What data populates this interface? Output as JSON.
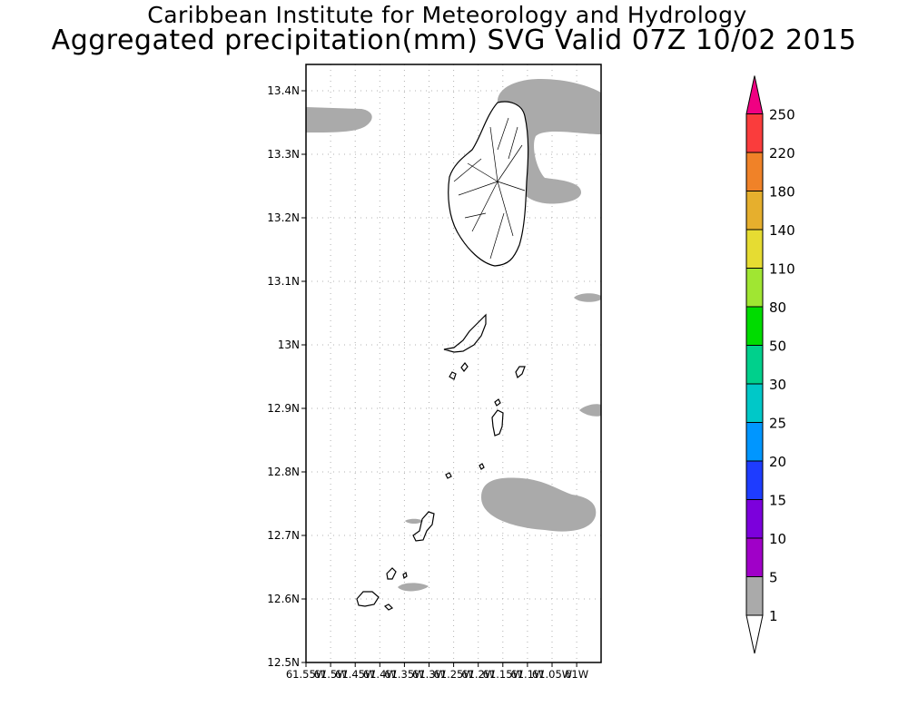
{
  "title": {
    "line1": "Caribbean Institute for Meteorology and Hydrology",
    "line2": "Aggregated precipitation(mm) SVG Valid 07Z 10/02 2015"
  },
  "map": {
    "region": "St. Vincent and the Grenadines",
    "lat_range": [
      12.5,
      13.44
    ],
    "lon_range": [
      -61.55,
      -60.98
    ],
    "lat_ticks": [
      "13.4N",
      "13.3N",
      "13.2N",
      "13.1N",
      "13N",
      "12.9N",
      "12.8N",
      "12.7N",
      "12.6N",
      "12.5N"
    ],
    "lon_ticks": [
      "61.55W",
      "61.5W",
      "61.45W",
      "61.4W",
      "61.35W",
      "61.3W",
      "61.25W",
      "61.2W",
      "61.15W",
      "61.1W",
      "61.05W",
      "61W"
    ],
    "gridlines": true,
    "precip_shading_color": "#aaaaaa",
    "coastline_color": "#000000"
  },
  "colorbar": {
    "levels": [
      "1",
      "5",
      "10",
      "15",
      "20",
      "25",
      "30",
      "50",
      "80",
      "110",
      "140",
      "180",
      "220",
      "250"
    ],
    "colors": [
      "#aaaaaa",
      "#a000c8",
      "#7c00dc",
      "#1e3cff",
      "#0096ff",
      "#00c8c8",
      "#00d08c",
      "#00dc00",
      "#a0e632",
      "#e6dc32",
      "#e6af2d",
      "#f08228",
      "#fa3c3c",
      "#f00082"
    ],
    "under_color": "#ffffff",
    "over_color": "#f00082"
  }
}
